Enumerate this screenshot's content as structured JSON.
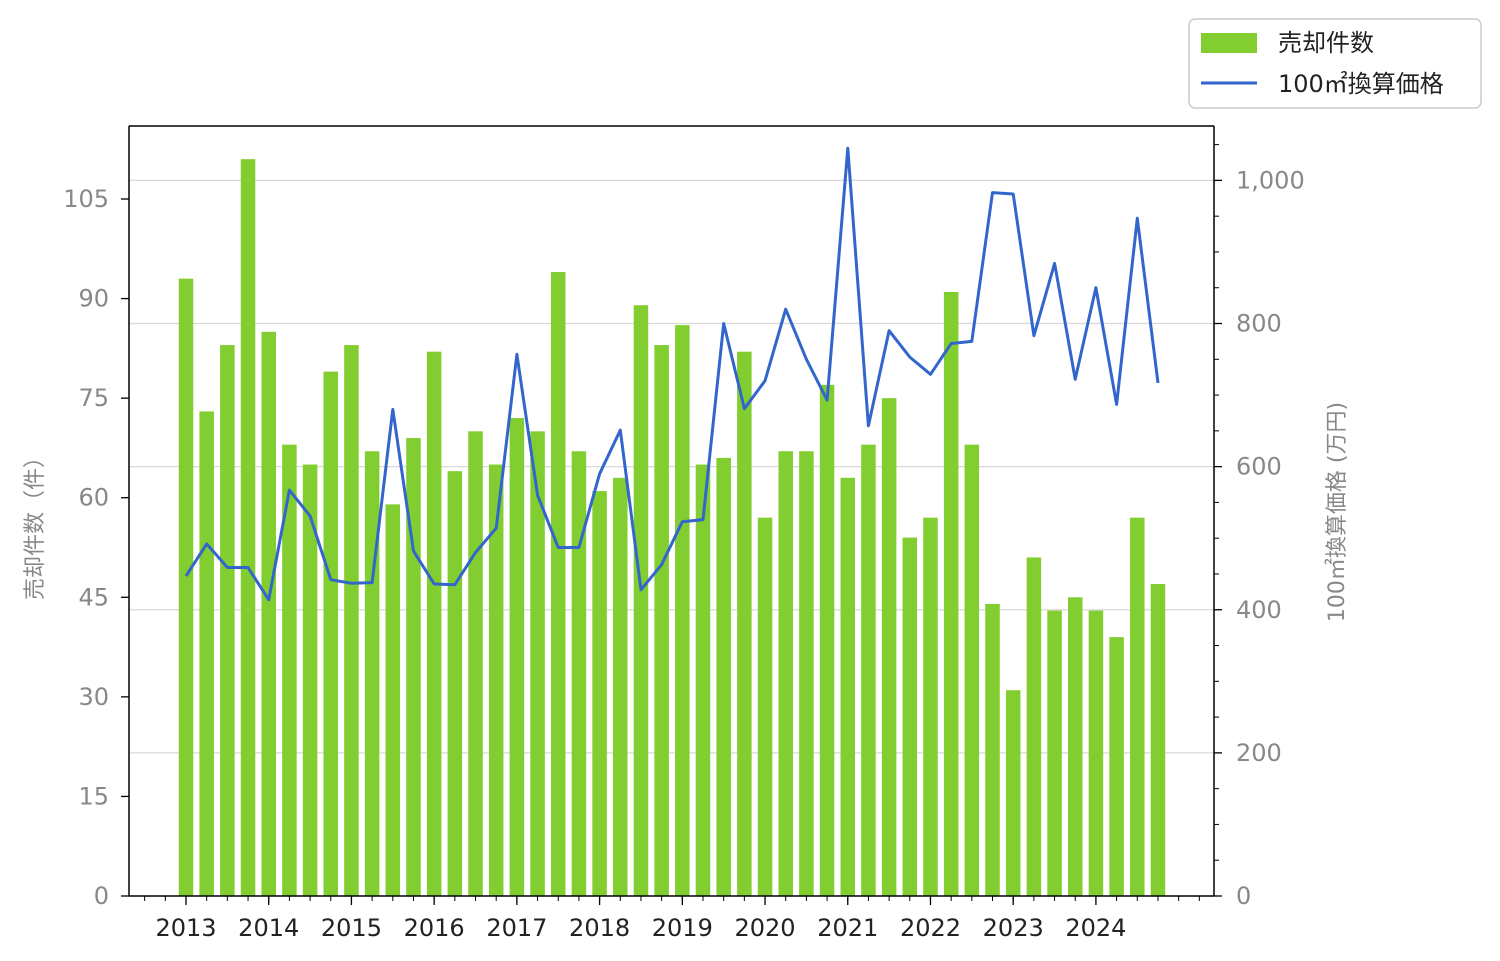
{
  "chart_data": {
    "type": "bar+line",
    "categories": [
      "2013Q1",
      "2013Q2",
      "2013Q3",
      "2013Q4",
      "2014Q1",
      "2014Q2",
      "2014Q3",
      "2014Q4",
      "2015Q1",
      "2015Q2",
      "2015Q3",
      "2015Q4",
      "2016Q1",
      "2016Q2",
      "2016Q3",
      "2016Q4",
      "2017Q1",
      "2017Q2",
      "2017Q3",
      "2017Q4",
      "2018Q1",
      "2018Q2",
      "2018Q3",
      "2018Q4",
      "2019Q1",
      "2019Q2",
      "2019Q3",
      "2019Q4",
      "2020Q1",
      "2020Q2",
      "2020Q3",
      "2020Q4",
      "2021Q1",
      "2021Q2",
      "2021Q3",
      "2021Q4",
      "2022Q1",
      "2022Q2",
      "2022Q3",
      "2022Q4",
      "2023Q1",
      "2023Q2",
      "2023Q3",
      "2023Q4",
      "2024Q1",
      "2024Q2",
      "2024Q3",
      "2024Q4"
    ],
    "x_tick_labels": [
      "2013",
      "2014",
      "2015",
      "2016",
      "2017",
      "2018",
      "2019",
      "2020",
      "2021",
      "2022",
      "2023",
      "2024"
    ],
    "series": [
      {
        "name": "売却件数",
        "type": "bar",
        "axis": "left",
        "color": "#82cd2f",
        "values": [
          93,
          73,
          83,
          111,
          85,
          68,
          65,
          79,
          83,
          67,
          59,
          69,
          82,
          64,
          70,
          65,
          72,
          70,
          94,
          67,
          61,
          63,
          89,
          83,
          86,
          65,
          66,
          82,
          57,
          67,
          67,
          77,
          63,
          68,
          75,
          54,
          57,
          91,
          68,
          44,
          31,
          51,
          43,
          45,
          43,
          39,
          57,
          47
        ]
      },
      {
        "name": "100㎡換算価格",
        "type": "line",
        "axis": "right",
        "color": "#3366cc",
        "values": [
          447,
          492,
          459,
          459,
          414,
          567,
          531,
          442,
          437,
          438,
          680,
          482,
          436,
          435,
          480,
          514,
          757,
          560,
          487,
          487,
          590,
          651,
          428,
          463,
          523,
          526,
          800,
          681,
          720,
          820,
          750,
          693,
          1045,
          657,
          790,
          753,
          729,
          772,
          775,
          983,
          981,
          783,
          884,
          722,
          850,
          687,
          947,
          717
        ]
      }
    ],
    "y_left": {
      "label": "売却件数（件）",
      "ticks": [
        "0",
        "15",
        "30",
        "45",
        "60",
        "75",
        "90",
        "105"
      ],
      "range": [
        0,
        116
      ]
    },
    "y_right": {
      "label": "100㎡換算価格 (万円)",
      "ticks": [
        "0",
        "200",
        "400",
        "600",
        "800",
        "1,000"
      ],
      "range": [
        0,
        1076
      ]
    },
    "grid": "horizontal, right axis",
    "legend_position": "top-right, above plot"
  }
}
